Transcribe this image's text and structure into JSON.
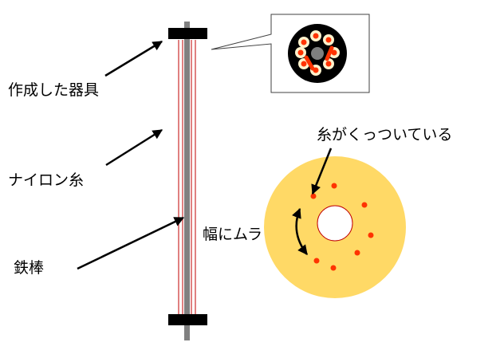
{
  "labels": {
    "device": "作成した器具",
    "nylon": "ナイロン糸",
    "rod": "鉄棒",
    "thread_attached": "糸がくっついている",
    "width_uneven": "幅にムラ"
  },
  "colors": {
    "rod": "#808080",
    "clamp": "#000000",
    "thread": "#c00000",
    "disc": "#ffd966",
    "dot": "#ff3300",
    "hole_outline": "#c00000",
    "arrow": "#000000"
  }
}
